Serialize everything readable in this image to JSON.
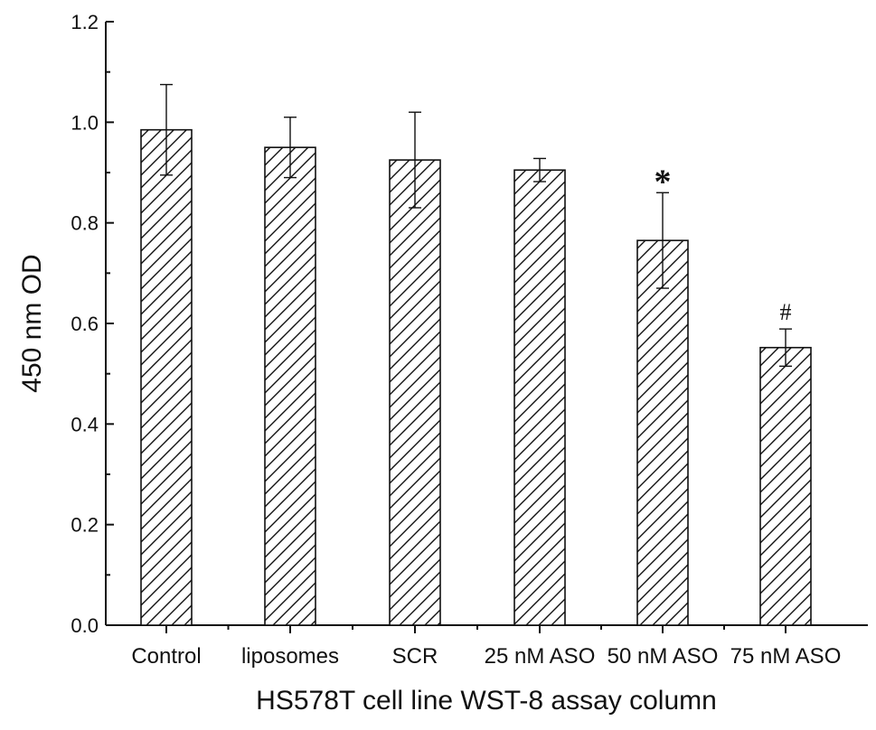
{
  "chart_data": {
    "type": "bar",
    "title": "",
    "xlabel": "HS578T cell line WST-8 assay column",
    "ylabel": "450 nm OD",
    "ylim": [
      0.0,
      1.2
    ],
    "yticks": [
      "0.0",
      "0.2",
      "0.4",
      "0.6",
      "0.8",
      "1.0",
      "1.2"
    ],
    "categories": [
      "Control",
      "liposomes",
      "SCR",
      "25 nM ASO",
      "50 nM ASO",
      "75 nM ASO"
    ],
    "values": [
      0.985,
      0.95,
      0.925,
      0.905,
      0.765,
      0.552
    ],
    "error": [
      0.09,
      0.06,
      0.095,
      0.023,
      0.095,
      0.037
    ],
    "annotations": [
      "",
      "",
      "",
      "",
      "*",
      "#"
    ],
    "grid": false,
    "bar_fill": "diagonal-hatch",
    "colors": {
      "bar_stroke": "#111111",
      "hatch": "#111111",
      "background": "#ffffff"
    }
  }
}
